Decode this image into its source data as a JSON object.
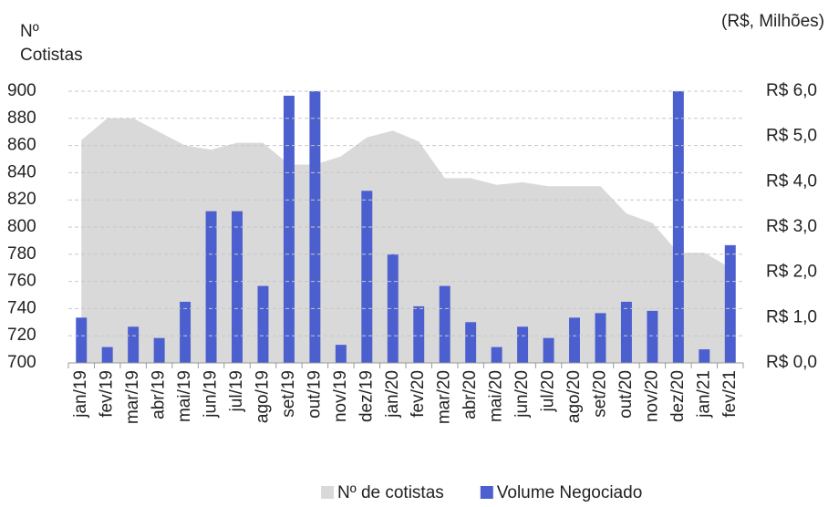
{
  "chart_data": {
    "type": "combo",
    "ylabel": "Nº Cotistas",
    "y2label": "(R$, Milhões)",
    "categories": [
      "jan/19",
      "fev/19",
      "mar/19",
      "abr/19",
      "mai/19",
      "jun/19",
      "jul/19",
      "ago/19",
      "set/19",
      "out/19",
      "nov/19",
      "dez/19",
      "jan/20",
      "fev/20",
      "mar/20",
      "abr/20",
      "mai/20",
      "jun/20",
      "jul/20",
      "ago/20",
      "set/20",
      "out/20",
      "nov/20",
      "dez/20",
      "jan/21",
      "fev/21"
    ],
    "series": [
      {
        "name": "Nº de cotistas",
        "type": "area",
        "color": "#d9d9d9",
        "axis": "y",
        "values": [
          864,
          880,
          880,
          870,
          860,
          857,
          862,
          862,
          846,
          846,
          852,
          866,
          871,
          863,
          836,
          836,
          831,
          833,
          830,
          830,
          830,
          810,
          803,
          781,
          781,
          770
        ]
      },
      {
        "name": "Volume Negociado",
        "type": "bar",
        "color": "#4c5fcf",
        "axis": "y2",
        "values": [
          1.0,
          0.35,
          0.8,
          0.55,
          1.35,
          3.35,
          3.35,
          1.7,
          5.9,
          6.0,
          0.4,
          3.8,
          2.4,
          1.25,
          1.7,
          0.9,
          0.35,
          0.8,
          0.55,
          1.0,
          1.1,
          1.35,
          1.15,
          6.0,
          0.3,
          2.6
        ]
      }
    ],
    "ylim": [
      700,
      900
    ],
    "yticks": [
      700,
      720,
      740,
      760,
      780,
      800,
      820,
      840,
      860,
      880,
      900
    ],
    "y2lim": [
      0,
      6
    ],
    "y2ticks": [
      {
        "value": 0,
        "label": "R$ 0,0"
      },
      {
        "value": 1,
        "label": "R$ 1,0"
      },
      {
        "value": 2,
        "label": "R$ 2,0"
      },
      {
        "value": 3,
        "label": "R$ 3,0"
      },
      {
        "value": 4,
        "label": "R$ 4,0"
      },
      {
        "value": 5,
        "label": "R$ 5,0"
      },
      {
        "value": 6,
        "label": "R$ 6,0"
      }
    ],
    "grid": true
  }
}
